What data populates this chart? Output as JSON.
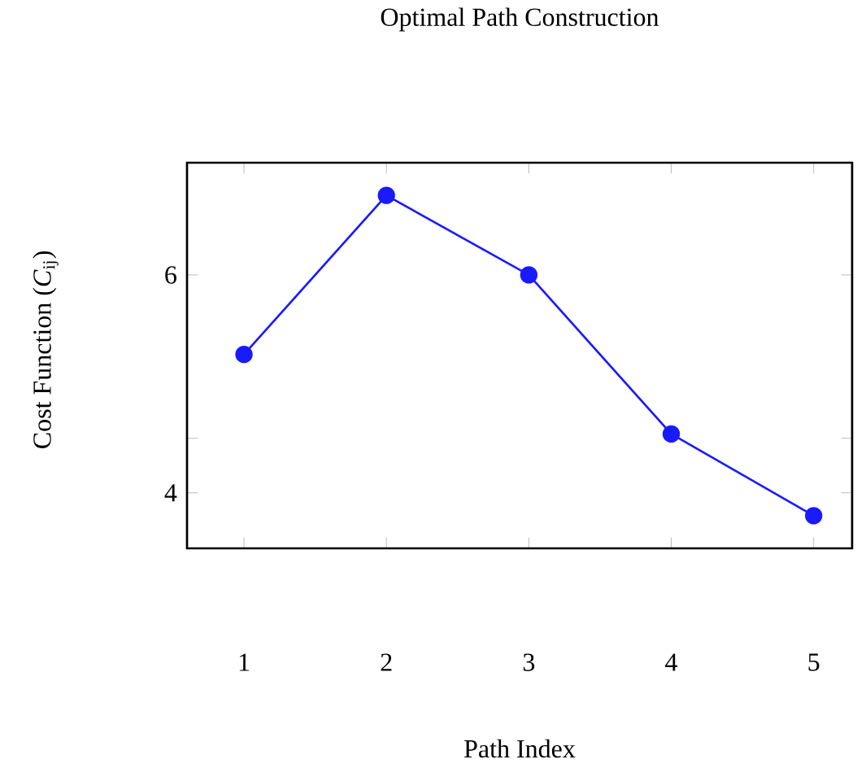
{
  "chart_data": {
    "type": "line",
    "title": "Optimal Path Construction",
    "xlabel": "Path Index",
    "ylabel": "Cost Function (*C*$_{ij}$)",
    "x": [
      1,
      2,
      3,
      4,
      5
    ],
    "series": [
      {
        "color": "#1a1aff",
        "values": [
          5.27,
          6.73,
          6.0,
          4.54,
          3.79
        ]
      }
    ],
    "xlim": [
      0.6,
      5.27
    ],
    "xticks": [
      1,
      2,
      3,
      4,
      5
    ],
    "ylim": [
      3.49,
      7.03
    ],
    "yticks": [
      6,
      {
        "value": 4.5,
        "label": null
      },
      4
    ],
    "marker": "circle",
    "line_style": "solid"
  }
}
